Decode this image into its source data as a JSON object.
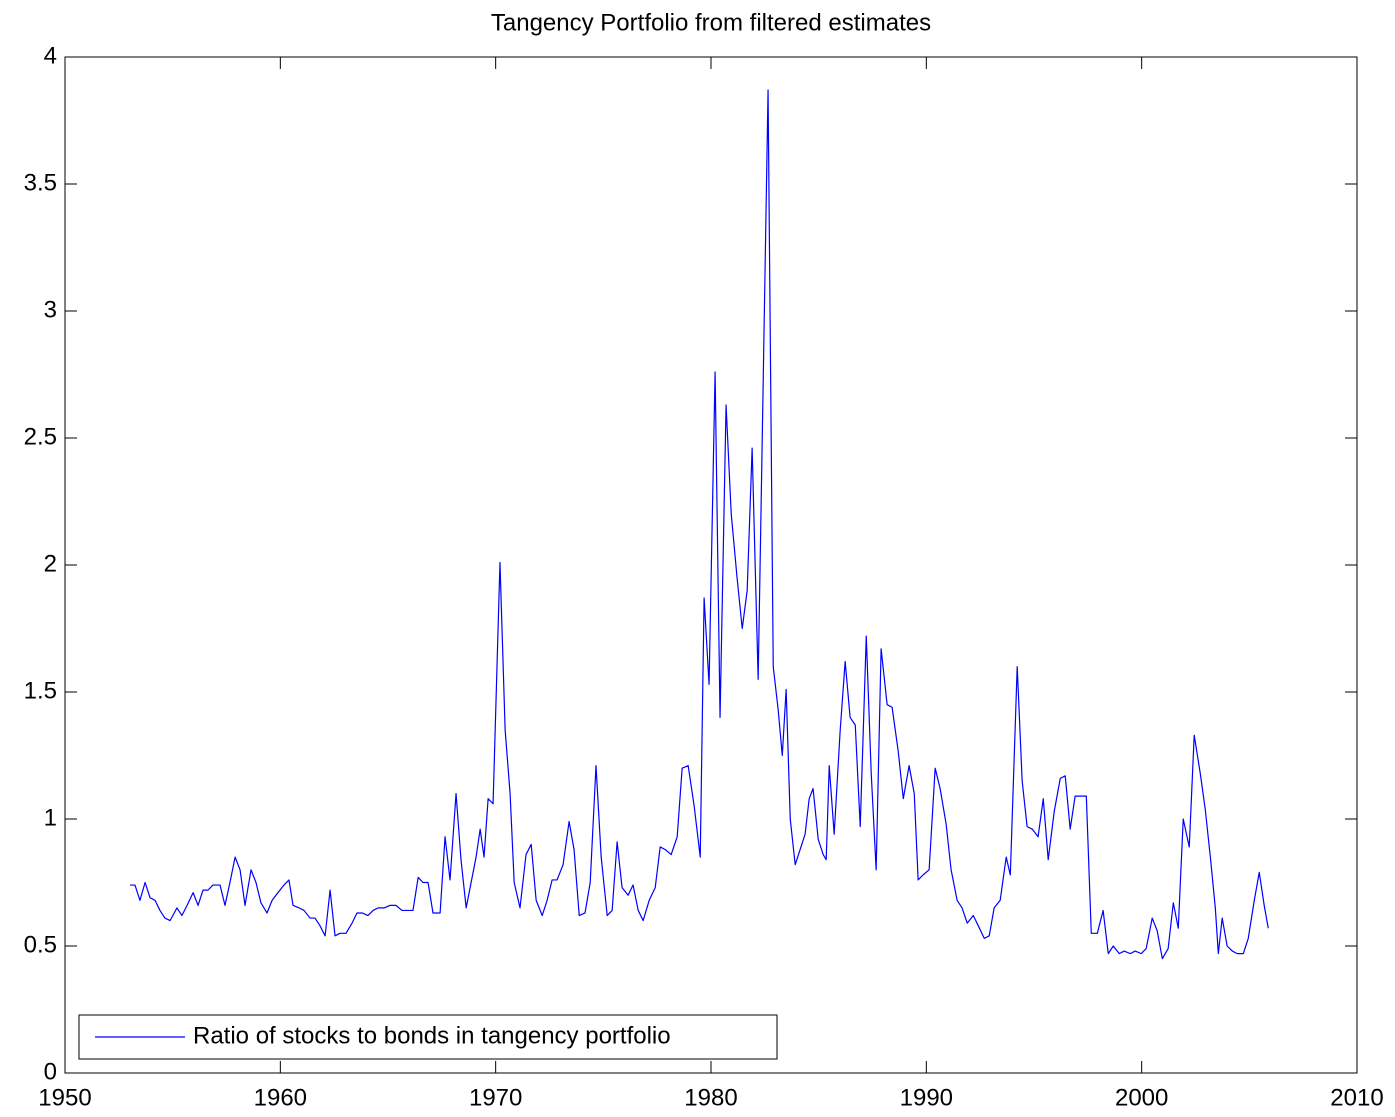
{
  "chart_data": {
    "type": "line",
    "title": "Tangency Portfolio from filtered estimates",
    "x": [
      1953.02,
      1953.25,
      1953.48,
      1953.72,
      1953.95,
      1954.18,
      1954.41,
      1954.64,
      1954.88,
      1955.2,
      1955.43,
      1955.67,
      1955.95,
      1956.18,
      1956.41,
      1956.64,
      1956.87,
      1957.2,
      1957.43,
      1957.66,
      1957.9,
      1958.13,
      1958.36,
      1958.64,
      1958.87,
      1959.1,
      1959.38,
      1959.62,
      1959.89,
      1960.17,
      1960.4,
      1960.59,
      1960.87,
      1961.1,
      1961.38,
      1961.61,
      1961.84,
      1962.08,
      1962.31,
      1962.54,
      1962.77,
      1963.05,
      1963.33,
      1963.56,
      1963.8,
      1964.07,
      1964.31,
      1964.54,
      1964.82,
      1965.1,
      1965.37,
      1965.65,
      1965.93,
      1966.16,
      1966.4,
      1966.63,
      1966.86,
      1967.09,
      1967.42,
      1967.65,
      1967.88,
      1968.16,
      1968.39,
      1968.63,
      1968.86,
      1969.09,
      1969.28,
      1969.46,
      1969.65,
      1969.88,
      1970.2,
      1970.44,
      1970.67,
      1970.86,
      1971.13,
      1971.41,
      1971.65,
      1971.88,
      1972.16,
      1972.39,
      1972.62,
      1972.85,
      1973.13,
      1973.41,
      1973.64,
      1973.88,
      1974.15,
      1974.39,
      1974.66,
      1974.9,
      1975.18,
      1975.41,
      1975.64,
      1975.87,
      1976.15,
      1976.38,
      1976.62,
      1976.85,
      1977.13,
      1977.41,
      1977.64,
      1977.87,
      1978.15,
      1978.43,
      1978.66,
      1978.94,
      1979.22,
      1979.5,
      1979.68,
      1979.91,
      1980.19,
      1980.42,
      1980.7,
      1980.94,
      1981.21,
      1981.45,
      1981.68,
      1981.91,
      1982.19,
      1982.38,
      1982.65,
      1982.89,
      1983.12,
      1983.31,
      1983.49,
      1983.68,
      1983.91,
      1984.14,
      1984.37,
      1984.56,
      1984.74,
      1984.98,
      1985.21,
      1985.35,
      1985.49,
      1985.72,
      1986.0,
      1986.23,
      1986.46,
      1986.7,
      1986.93,
      1987.21,
      1987.44,
      1987.67,
      1987.9,
      1988.18,
      1988.41,
      1988.69,
      1988.93,
      1989.2,
      1989.44,
      1989.62,
      1989.85,
      1990.13,
      1990.41,
      1990.64,
      1990.92,
      1991.15,
      1991.43,
      1991.66,
      1991.9,
      1992.18,
      1992.41,
      1992.69,
      1992.92,
      1993.15,
      1993.43,
      1993.71,
      1993.9,
      1994.22,
      1994.45,
      1994.68,
      1994.92,
      1995.19,
      1995.43,
      1995.66,
      1995.94,
      1996.22,
      1996.45,
      1996.68,
      1996.91,
      1997.19,
      1997.43,
      1997.66,
      1997.94,
      1998.21,
      1998.45,
      1998.68,
      1998.96,
      1999.19,
      1999.47,
      1999.7,
      1999.98,
      2000.21,
      2000.49,
      2000.72,
      2000.96,
      2001.23,
      2001.47,
      2001.7,
      2001.93,
      2002.21,
      2002.44,
      2002.72,
      2002.95,
      2003.19,
      2003.42,
      2003.56,
      2003.74,
      2003.97,
      2004.21,
      2004.44,
      2004.72,
      2004.95,
      2005.23,
      2005.46,
      2005.69,
      2005.88
    ],
    "series": [
      {
        "name": "Ratio of stocks to bonds in tangency portfolio",
        "color": "#0000ff",
        "values": [
          0.74,
          0.74,
          0.68,
          0.75,
          0.69,
          0.68,
          0.64,
          0.61,
          0.6,
          0.65,
          0.62,
          0.66,
          0.71,
          0.66,
          0.72,
          0.72,
          0.74,
          0.74,
          0.66,
          0.75,
          0.85,
          0.8,
          0.66,
          0.8,
          0.75,
          0.67,
          0.63,
          0.68,
          0.71,
          0.74,
          0.76,
          0.66,
          0.65,
          0.64,
          0.61,
          0.61,
          0.58,
          0.54,
          0.72,
          0.54,
          0.55,
          0.55,
          0.59,
          0.63,
          0.63,
          0.62,
          0.64,
          0.65,
          0.65,
          0.66,
          0.66,
          0.64,
          0.64,
          0.64,
          0.77,
          0.75,
          0.75,
          0.63,
          0.63,
          0.93,
          0.76,
          1.1,
          0.84,
          0.65,
          0.75,
          0.85,
          0.96,
          0.85,
          1.08,
          1.06,
          2.01,
          1.35,
          1.1,
          0.75,
          0.65,
          0.86,
          0.9,
          0.68,
          0.62,
          0.68,
          0.76,
          0.76,
          0.82,
          0.99,
          0.88,
          0.62,
          0.63,
          0.75,
          1.21,
          0.85,
          0.62,
          0.64,
          0.91,
          0.73,
          0.7,
          0.74,
          0.64,
          0.6,
          0.68,
          0.73,
          0.89,
          0.88,
          0.86,
          0.93,
          1.2,
          1.21,
          1.05,
          0.85,
          1.87,
          1.53,
          2.76,
          1.4,
          2.63,
          2.2,
          1.95,
          1.75,
          1.9,
          2.46,
          1.55,
          2.5,
          3.87,
          1.6,
          1.43,
          1.25,
          1.51,
          1.0,
          0.82,
          0.88,
          0.94,
          1.08,
          1.12,
          0.92,
          0.86,
          0.84,
          1.21,
          0.94,
          1.35,
          1.62,
          1.4,
          1.37,
          0.97,
          1.72,
          1.18,
          0.8,
          1.67,
          1.45,
          1.44,
          1.27,
          1.08,
          1.21,
          1.1,
          0.76,
          0.78,
          0.8,
          1.2,
          1.12,
          0.98,
          0.8,
          0.68,
          0.65,
          0.59,
          0.62,
          0.58,
          0.53,
          0.54,
          0.65,
          0.68,
          0.85,
          0.78,
          1.6,
          1.15,
          0.97,
          0.96,
          0.93,
          1.08,
          0.84,
          1.03,
          1.16,
          1.17,
          0.96,
          1.09,
          1.09,
          1.09,
          0.55,
          0.55,
          0.64,
          0.47,
          0.5,
          0.47,
          0.48,
          0.47,
          0.48,
          0.47,
          0.49,
          0.61,
          0.56,
          0.45,
          0.49,
          0.67,
          0.57,
          1.0,
          0.89,
          1.33,
          1.18,
          1.04,
          0.85,
          0.65,
          0.47,
          0.61,
          0.5,
          0.48,
          0.47,
          0.47,
          0.53,
          0.68,
          0.79,
          0.66,
          0.57
        ]
      }
    ],
    "xlim": [
      1950,
      2010
    ],
    "xticks": [
      1950,
      1960,
      1970,
      1980,
      1990,
      2000,
      2010
    ],
    "ylim": [
      0,
      4
    ],
    "yticks": [
      0,
      0.5,
      1,
      1.5,
      2,
      2.5,
      3,
      3.5,
      4
    ],
    "grid": false,
    "legend": "southwest"
  }
}
